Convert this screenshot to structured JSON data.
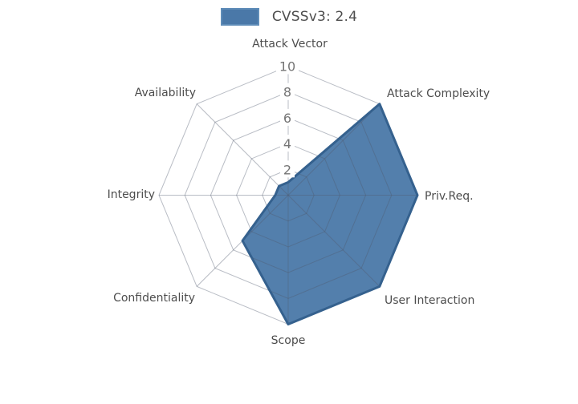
{
  "legend": {
    "label": "CVSSv3: 2.4"
  },
  "chart_data": {
    "type": "radar",
    "categories": [
      "Attack Vector",
      "Attack Complexity",
      "Priv.Req.",
      "User Interaction",
      "Scope",
      "Confidentiality",
      "Integrity",
      "Availability"
    ],
    "series": [
      {
        "name": "CVSSv3: 2.4",
        "values": [
          1,
          10,
          10,
          10,
          10,
          5,
          1,
          1
        ],
        "fill_color": "#4A78A8",
        "border_color": "#35618E"
      }
    ],
    "ticks": [
      2,
      4,
      6,
      8,
      10
    ],
    "rmin": 0,
    "rmax": 10,
    "grid": "on",
    "legend_position": "top",
    "notes": "8-axis spider web grid, tick labels on vertical axis with white backdrops"
  }
}
